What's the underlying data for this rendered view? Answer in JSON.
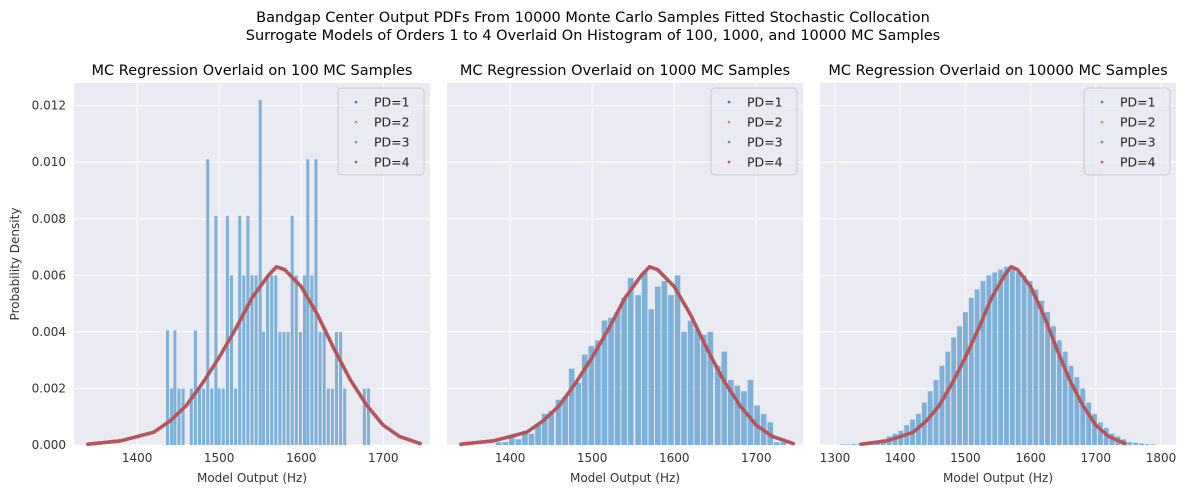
{
  "figure": {
    "title_line1": "Bandgap Center Output PDFs From 10000 Monte Carlo Samples Fitted Stochastic Collocation",
    "title_line2": "Surrogate Models of Orders 1 to 4 Overlaid On Histogram of 100, 1000, and 10000 MC Samples"
  },
  "colors": {
    "background": "#eaeaf2",
    "grid": "#ffffff",
    "histogram": "#7fb1d8",
    "PD=1": "#4c72b0",
    "PD=2": "#dd8452",
    "PD=3": "#55a868",
    "PD=4": "#c44e52"
  },
  "legend_location": "upper right",
  "grid": true,
  "chart_data": [
    {
      "type": "bar",
      "title": "MC Regression Overlaid on 100 MC Samples",
      "xlabel": "Model Output (Hz)",
      "ylabel": "Probability Density",
      "xlim": [
        1323,
        1757
      ],
      "ylim": [
        0,
        0.0128
      ],
      "xticks": [
        1400,
        1500,
        1600,
        1700
      ],
      "yticks": [
        0.0,
        0.002,
        0.004,
        0.006,
        0.008,
        0.01,
        0.012
      ],
      "ytick_labels": [
        "0.000",
        "0.002",
        "0.004",
        "0.006",
        "0.008",
        "0.010",
        "0.012"
      ],
      "histogram": {
        "bin_width": 4.9,
        "bin_centers": [
          1437,
          1442,
          1446,
          1451,
          1456,
          1461,
          1466,
          1471,
          1476,
          1481,
          1486,
          1491,
          1496,
          1500,
          1505,
          1510,
          1515,
          1520,
          1525,
          1530,
          1535,
          1540,
          1545,
          1550,
          1554,
          1559,
          1564,
          1569,
          1574,
          1579,
          1584,
          1589,
          1594,
          1599,
          1604,
          1608,
          1613,
          1618,
          1623,
          1628,
          1633,
          1638,
          1643,
          1648,
          1653,
          1677,
          1682
        ],
        "densities": [
          0.00405,
          0.002,
          0.00405,
          0.002,
          0.002,
          0.0,
          0.002,
          0.00405,
          0.002,
          0.002,
          0.0101,
          0.002,
          0.0081,
          0.002,
          0.002,
          0.0081,
          0.006,
          0.002,
          0.0081,
          0.006,
          0.0081,
          0.006,
          0.006,
          0.0122,
          0.004,
          0.006,
          0.006,
          0.006,
          0.004,
          0.004,
          0.004,
          0.0081,
          0.006,
          0.004,
          0.006,
          0.0101,
          0.006,
          0.0101,
          0.004,
          0.004,
          0.002,
          0.002,
          0.004,
          0.004,
          0.002,
          0.002,
          0.002
        ]
      },
      "pdf_curves": [
        {
          "name": "PD=1",
          "x": [
            1340,
            1380,
            1420,
            1440,
            1460,
            1480,
            1500,
            1520,
            1540,
            1560,
            1570,
            1580,
            1600,
            1620,
            1640,
            1660,
            1680,
            1700,
            1720,
            1745
          ],
          "y": [
            3e-05,
            0.00015,
            0.00045,
            0.00085,
            0.0014,
            0.0022,
            0.0031,
            0.0041,
            0.0052,
            0.006,
            0.0063,
            0.0062,
            0.0056,
            0.0046,
            0.0034,
            0.0023,
            0.0014,
            0.0007,
            0.0003,
            5e-05
          ]
        },
        {
          "name": "PD=2",
          "x": [
            1340,
            1380,
            1420,
            1440,
            1460,
            1480,
            1500,
            1520,
            1540,
            1560,
            1570,
            1580,
            1600,
            1620,
            1640,
            1660,
            1680,
            1700,
            1720,
            1745
          ],
          "y": [
            3e-05,
            0.00015,
            0.00045,
            0.00085,
            0.0014,
            0.0022,
            0.0031,
            0.0041,
            0.0052,
            0.006,
            0.0063,
            0.0062,
            0.0056,
            0.0046,
            0.0034,
            0.0023,
            0.0014,
            0.0007,
            0.0003,
            5e-05
          ]
        },
        {
          "name": "PD=3",
          "x": [
            1340,
            1380,
            1420,
            1440,
            1460,
            1480,
            1500,
            1520,
            1540,
            1560,
            1570,
            1580,
            1600,
            1620,
            1640,
            1660,
            1680,
            1700,
            1720,
            1745
          ],
          "y": [
            3e-05,
            0.00015,
            0.00045,
            0.00085,
            0.0014,
            0.0022,
            0.0031,
            0.0041,
            0.0052,
            0.006,
            0.0063,
            0.0062,
            0.0056,
            0.0046,
            0.0034,
            0.0023,
            0.0014,
            0.0007,
            0.0003,
            5e-05
          ]
        },
        {
          "name": "PD=4",
          "x": [
            1340,
            1380,
            1420,
            1440,
            1460,
            1480,
            1500,
            1520,
            1540,
            1560,
            1570,
            1580,
            1600,
            1620,
            1640,
            1660,
            1680,
            1700,
            1720,
            1745
          ],
          "y": [
            3e-05,
            0.00015,
            0.00045,
            0.00085,
            0.0014,
            0.0022,
            0.0031,
            0.0041,
            0.0052,
            0.006,
            0.0063,
            0.0062,
            0.0056,
            0.0046,
            0.0034,
            0.0023,
            0.0014,
            0.0007,
            0.0003,
            5e-05
          ]
        }
      ]
    },
    {
      "type": "bar",
      "title": "MC Regression Overlaid on 1000 MC Samples",
      "xlabel": "Model Output (Hz)",
      "ylabel": "",
      "xlim": [
        1323,
        1757
      ],
      "ylim": [
        0,
        0.0128
      ],
      "xticks": [
        1400,
        1500,
        1600,
        1700
      ],
      "yticks": [
        0.0,
        0.002,
        0.004,
        0.006,
        0.008,
        0.01,
        0.012
      ],
      "histogram": {
        "bin_width": 8.1,
        "bin_centers": [
          1386,
          1394,
          1402,
          1410,
          1418,
          1426,
          1434,
          1442,
          1450,
          1459,
          1467,
          1475,
          1483,
          1491,
          1499,
          1507,
          1515,
          1523,
          1531,
          1539,
          1547,
          1556,
          1564,
          1572,
          1580,
          1588,
          1596,
          1604,
          1612,
          1620,
          1628,
          1636,
          1644,
          1653,
          1661,
          1669,
          1677,
          1685,
          1693,
          1701,
          1709,
          1717,
          1725,
          1733
        ],
        "densities": [
          0.0001,
          0.0001,
          0.0003,
          0.0002,
          0.0005,
          0.0004,
          0.0007,
          0.0011,
          0.0012,
          0.0016,
          0.0017,
          0.0027,
          0.0022,
          0.0032,
          0.0035,
          0.0037,
          0.0044,
          0.0045,
          0.0047,
          0.0052,
          0.0059,
          0.0053,
          0.0061,
          0.0048,
          0.0056,
          0.0058,
          0.0053,
          0.006,
          0.004,
          0.0044,
          0.0041,
          0.0039,
          0.004,
          0.0028,
          0.0033,
          0.0023,
          0.0021,
          0.0019,
          0.0023,
          0.0014,
          0.0011,
          0.0008,
          0.0001,
          0.0001
        ]
      },
      "pdf_curves": [
        {
          "name": "PD=1",
          "x": [
            1340,
            1380,
            1420,
            1440,
            1460,
            1480,
            1500,
            1520,
            1540,
            1560,
            1570,
            1580,
            1600,
            1620,
            1640,
            1660,
            1680,
            1700,
            1720,
            1745
          ],
          "y": [
            3e-05,
            0.00015,
            0.00045,
            0.00085,
            0.0014,
            0.0022,
            0.0031,
            0.0041,
            0.0052,
            0.006,
            0.0063,
            0.0062,
            0.0056,
            0.0046,
            0.0034,
            0.0023,
            0.0014,
            0.0007,
            0.0003,
            5e-05
          ]
        },
        {
          "name": "PD=2",
          "x": [
            1340,
            1380,
            1420,
            1440,
            1460,
            1480,
            1500,
            1520,
            1540,
            1560,
            1570,
            1580,
            1600,
            1620,
            1640,
            1660,
            1680,
            1700,
            1720,
            1745
          ],
          "y": [
            3e-05,
            0.00015,
            0.00045,
            0.00085,
            0.0014,
            0.0022,
            0.0031,
            0.0041,
            0.0052,
            0.006,
            0.0063,
            0.0062,
            0.0056,
            0.0046,
            0.0034,
            0.0023,
            0.0014,
            0.0007,
            0.0003,
            5e-05
          ]
        },
        {
          "name": "PD=3",
          "x": [
            1340,
            1380,
            1420,
            1440,
            1460,
            1480,
            1500,
            1520,
            1540,
            1560,
            1570,
            1580,
            1600,
            1620,
            1640,
            1660,
            1680,
            1700,
            1720,
            1745
          ],
          "y": [
            3e-05,
            0.00015,
            0.00045,
            0.00085,
            0.0014,
            0.0022,
            0.0031,
            0.0041,
            0.0052,
            0.006,
            0.0063,
            0.0062,
            0.0056,
            0.0046,
            0.0034,
            0.0023,
            0.0014,
            0.0007,
            0.0003,
            5e-05
          ]
        },
        {
          "name": "PD=4",
          "x": [
            1340,
            1380,
            1420,
            1440,
            1460,
            1480,
            1500,
            1520,
            1540,
            1560,
            1570,
            1580,
            1600,
            1620,
            1640,
            1660,
            1680,
            1700,
            1720,
            1745
          ],
          "y": [
            3e-05,
            0.00015,
            0.00045,
            0.00085,
            0.0014,
            0.0022,
            0.0031,
            0.0041,
            0.0052,
            0.006,
            0.0063,
            0.0062,
            0.0056,
            0.0046,
            0.0034,
            0.0023,
            0.0014,
            0.0007,
            0.0003,
            5e-05
          ]
        }
      ]
    },
    {
      "type": "bar",
      "title": "MC Regression Overlaid on 10000 MC Samples",
      "xlabel": "Model Output (Hz)",
      "ylabel": "",
      "xlim": [
        1277,
        1823
      ],
      "ylim": [
        0,
        0.0128
      ],
      "xticks": [
        1300,
        1400,
        1500,
        1600,
        1700,
        1800
      ],
      "yticks": [
        0.0,
        0.002,
        0.004,
        0.006,
        0.008,
        0.01,
        0.012
      ],
      "histogram": {
        "bin_width": 9.0,
        "bin_centers": [
          1311,
          1320,
          1329,
          1338,
          1347,
          1356,
          1365,
          1374,
          1383,
          1392,
          1401,
          1410,
          1419,
          1428,
          1437,
          1446,
          1455,
          1464,
          1473,
          1482,
          1491,
          1500,
          1509,
          1518,
          1527,
          1536,
          1545,
          1554,
          1563,
          1572,
          1581,
          1590,
          1599,
          1608,
          1617,
          1626,
          1635,
          1644,
          1653,
          1662,
          1671,
          1680,
          1689,
          1698,
          1707,
          1716,
          1725,
          1734,
          1743,
          1752,
          1761,
          1770,
          1779,
          1788
        ],
        "densities": [
          2e-05,
          2e-05,
          3e-05,
          5e-05,
          7e-05,
          0.0001,
          0.00013,
          0.0002,
          0.0003,
          0.0004,
          0.0005,
          0.0007,
          0.0009,
          0.0011,
          0.0015,
          0.0019,
          0.0023,
          0.0028,
          0.0033,
          0.0038,
          0.0042,
          0.0047,
          0.0052,
          0.0055,
          0.0058,
          0.006,
          0.0061,
          0.0062,
          0.0063,
          0.0062,
          0.0061,
          0.006,
          0.0058,
          0.0055,
          0.0051,
          0.0047,
          0.0042,
          0.0037,
          0.0033,
          0.0028,
          0.0024,
          0.002,
          0.0015,
          0.0011,
          0.0008,
          0.0006,
          0.0004,
          0.0003,
          0.0002,
          0.0001,
          8e-05,
          5e-05,
          3e-05,
          2e-05
        ]
      },
      "pdf_curves": [
        {
          "name": "PD=1",
          "x": [
            1340,
            1380,
            1420,
            1440,
            1460,
            1480,
            1500,
            1520,
            1540,
            1560,
            1570,
            1580,
            1600,
            1620,
            1640,
            1660,
            1680,
            1700,
            1720,
            1745
          ],
          "y": [
            3e-05,
            0.00015,
            0.00045,
            0.00085,
            0.0014,
            0.0022,
            0.0031,
            0.0041,
            0.0052,
            0.006,
            0.0063,
            0.0062,
            0.0056,
            0.0046,
            0.0034,
            0.0023,
            0.0014,
            0.0007,
            0.0003,
            5e-05
          ]
        },
        {
          "name": "PD=2",
          "x": [
            1340,
            1380,
            1420,
            1440,
            1460,
            1480,
            1500,
            1520,
            1540,
            1560,
            1570,
            1580,
            1600,
            1620,
            1640,
            1660,
            1680,
            1700,
            1720,
            1745
          ],
          "y": [
            3e-05,
            0.00015,
            0.00045,
            0.00085,
            0.0014,
            0.0022,
            0.0031,
            0.0041,
            0.0052,
            0.006,
            0.0063,
            0.0062,
            0.0056,
            0.0046,
            0.0034,
            0.0023,
            0.0014,
            0.0007,
            0.0003,
            5e-05
          ]
        },
        {
          "name": "PD=3",
          "x": [
            1340,
            1380,
            1420,
            1440,
            1460,
            1480,
            1500,
            1520,
            1540,
            1560,
            1570,
            1580,
            1600,
            1620,
            1640,
            1660,
            1680,
            1700,
            1720,
            1745
          ],
          "y": [
            3e-05,
            0.00015,
            0.00045,
            0.00085,
            0.0014,
            0.0022,
            0.0031,
            0.0041,
            0.0052,
            0.006,
            0.0063,
            0.0062,
            0.0056,
            0.0046,
            0.0034,
            0.0023,
            0.0014,
            0.0007,
            0.0003,
            5e-05
          ]
        },
        {
          "name": "PD=4",
          "x": [
            1340,
            1380,
            1420,
            1440,
            1460,
            1480,
            1500,
            1520,
            1540,
            1560,
            1570,
            1580,
            1600,
            1620,
            1640,
            1660,
            1680,
            1700,
            1720,
            1745
          ],
          "y": [
            3e-05,
            0.00015,
            0.00045,
            0.00085,
            0.0014,
            0.0022,
            0.0031,
            0.0041,
            0.0052,
            0.006,
            0.0063,
            0.0062,
            0.0056,
            0.0046,
            0.0034,
            0.0023,
            0.0014,
            0.0007,
            0.0003,
            5e-05
          ]
        }
      ]
    }
  ]
}
